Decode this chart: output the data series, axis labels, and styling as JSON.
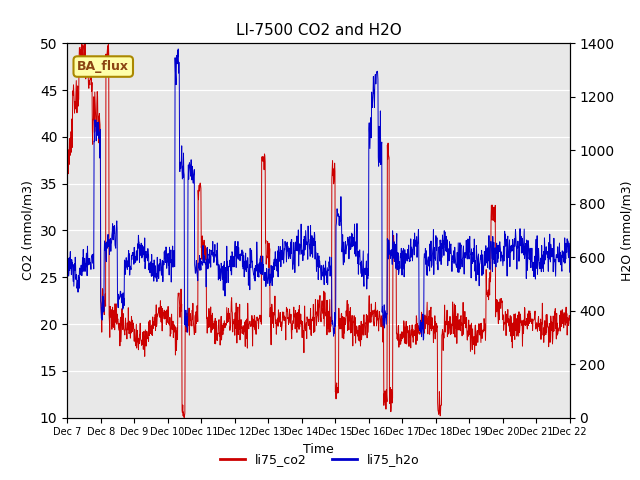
{
  "title": "LI-7500 CO2 and H2O",
  "xlabel": "Time",
  "ylabel_left": "CO2 (mmol/m3)",
  "ylabel_right": "H2O (mmol/m3)",
  "ylim_left": [
    10,
    50
  ],
  "ylim_right": [
    0,
    1400
  ],
  "yticks_left": [
    10,
    15,
    20,
    25,
    30,
    35,
    40,
    45,
    50
  ],
  "yticks_right": [
    0,
    200,
    400,
    600,
    800,
    1000,
    1200,
    1400
  ],
  "xtick_labels": [
    "Dec 7",
    "Dec 8",
    "Dec 9",
    "Dec 10",
    "Dec 11",
    "Dec 12",
    "Dec 13",
    "Dec 14",
    "Dec 15",
    "Dec 16",
    "Dec 17",
    "Dec 18",
    "Dec 19",
    "Dec 20",
    "Dec 21",
    "Dec 22"
  ],
  "bg_color": "#e8e8e8",
  "legend_labels": [
    "li75_co2",
    "li75_h2o"
  ],
  "legend_colors": [
    "#cc0000",
    "#0000cc"
  ],
  "annotation_text": "BA_flux",
  "annotation_color": "#8B4513",
  "annotation_bg": "#ffffaa",
  "annotation_edge": "#aa8800"
}
